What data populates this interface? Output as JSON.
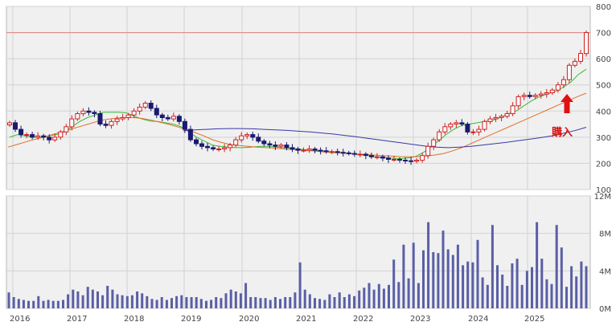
{
  "chart_data": [
    {
      "type": "candlestick",
      "panel": "price",
      "x_tick_labels": [
        "2016",
        "2017",
        "2018",
        "2019",
        "2020",
        "2021",
        "2022",
        "2023",
        "2024",
        "2025"
      ],
      "ylim": [
        100,
        800
      ],
      "y_ticks": [
        100,
        200,
        300,
        400,
        500,
        600,
        700,
        800
      ],
      "y_tick_labels": [
        "100",
        "200",
        "300",
        "400",
        "500",
        "600",
        "700",
        "800"
      ],
      "grid": true,
      "reference_line": {
        "value": 700,
        "color": "#e08080"
      },
      "series": [
        {
          "close": [
            355,
            330,
            310,
            310,
            300,
            305,
            300,
            290,
            300,
            320,
            340,
            370,
            390,
            400,
            395,
            390,
            350,
            345,
            360,
            370,
            375,
            385,
            400,
            415,
            430,
            410,
            385,
            375,
            370,
            380,
            360,
            330,
            290,
            275,
            265,
            260,
            255,
            255,
            260,
            270,
            290,
            305,
            310,
            300,
            285,
            275,
            270,
            265,
            270,
            260,
            255,
            250,
            250,
            255,
            250,
            248,
            245,
            245,
            242,
            240,
            238,
            235,
            235,
            230,
            225,
            225,
            220,
            215,
            215,
            212,
            210,
            208,
            212,
            230,
            265,
            290,
            320,
            340,
            350,
            355,
            350,
            320,
            320,
            330,
            360,
            370,
            375,
            380,
            390,
            420,
            455,
            460,
            455,
            460,
            465,
            470,
            480,
            500,
            520,
            575,
            590,
            620,
            700
          ]
        },
        {
          "color": "#33bb33",
          "values": [
            300,
            310,
            305,
            300,
            300,
            305,
            310,
            320,
            340,
            360,
            375,
            385,
            395,
            395,
            395,
            393,
            380,
            370,
            362,
            360,
            355,
            350,
            340,
            320,
            300,
            285,
            270,
            265,
            262,
            260,
            260,
            262,
            265,
            265,
            263,
            260,
            258,
            255,
            252,
            250,
            248,
            245,
            242,
            240,
            236,
            232,
            230,
            225,
            222,
            220,
            218,
            220,
            225,
            240,
            260,
            285,
            310,
            330,
            345,
            350,
            355,
            360,
            365,
            375,
            390,
            400,
            420,
            440,
            455,
            465,
            475,
            490,
            510,
            540,
            560
          ]
        },
        {
          "color": "#e07028",
          "values": [
            262,
            272,
            282,
            292,
            300,
            310,
            320,
            330,
            340,
            350,
            360,
            368,
            372,
            375,
            375,
            372,
            366,
            358,
            350,
            340,
            330,
            318,
            305,
            290,
            280,
            272,
            268,
            265,
            262,
            260,
            258,
            255,
            252,
            250,
            248,
            245,
            242,
            240,
            238,
            236,
            234,
            232,
            230,
            228,
            226,
            225,
            225,
            228,
            232,
            238,
            248,
            260,
            275,
            290,
            305,
            320,
            335,
            350,
            365,
            380,
            395,
            410,
            425,
            440,
            455,
            468
          ]
        },
        {
          "color": "#3838a8",
          "values": [
            325,
            328,
            330,
            332,
            333,
            333,
            332,
            330,
            328,
            326,
            323,
            320,
            316,
            312,
            307,
            302,
            296,
            290,
            284,
            278,
            272,
            266,
            262,
            260,
            262,
            265,
            270,
            275,
            280,
            286,
            292,
            298,
            305,
            315,
            325,
            338
          ]
        }
      ],
      "annotation": {
        "label": "購入",
        "color": "#dd1111"
      }
    },
    {
      "type": "bar",
      "panel": "volume",
      "x_tick_labels": [
        "2016",
        "2017",
        "2018",
        "2019",
        "2020",
        "2021",
        "2022",
        "2023",
        "2024",
        "2025"
      ],
      "ylim": [
        0,
        12
      ],
      "y_ticks": [
        0,
        4,
        8,
        12
      ],
      "y_tick_labels": [
        "0M",
        "4M",
        "8M",
        "12M"
      ],
      "grid": true,
      "bar_color": "#5a5fa6",
      "values": [
        1.7,
        1.2,
        1.0,
        0.9,
        0.8,
        0.8,
        1.3,
        0.8,
        0.9,
        0.8,
        0.8,
        0.9,
        1.5,
        2.0,
        1.8,
        1.4,
        2.3,
        2.0,
        1.8,
        1.4,
        2.4,
        2.0,
        1.5,
        1.4,
        1.3,
        1.4,
        1.8,
        1.6,
        1.3,
        1.0,
        0.9,
        1.2,
        0.9,
        1.1,
        1.3,
        1.4,
        1.2,
        1.2,
        1.2,
        1.0,
        0.8,
        0.9,
        1.2,
        1.1,
        1.6,
        2.0,
        1.8,
        1.6,
        2.7,
        1.2,
        1.2,
        1.1,
        1.1,
        0.9,
        1.2,
        1.0,
        1.2,
        1.2,
        1.7,
        4.9,
        2.0,
        1.5,
        1.1,
        1.0,
        0.9,
        1.5,
        1.2,
        1.7,
        1.2,
        1.5,
        1.3,
        1.9,
        2.2,
        2.7,
        2.0,
        2.6,
        2.1,
        2.5,
        5.2,
        2.8,
        6.8,
        3.2,
        7.0,
        2.7,
        6.2,
        9.2,
        6.0,
        5.9,
        8.3,
        6.3,
        5.7,
        6.8,
        4.6,
        5.0,
        4.9,
        7.3,
        3.3,
        2.5,
        8.9,
        4.6,
        3.6,
        2.4,
        4.8,
        5.3,
        2.5,
        4.0,
        4.4,
        9.2,
        5.3,
        3.1,
        2.6,
        8.9,
        6.5,
        2.3,
        4.5,
        3.4,
        5.0,
        4.5
      ]
    }
  ]
}
